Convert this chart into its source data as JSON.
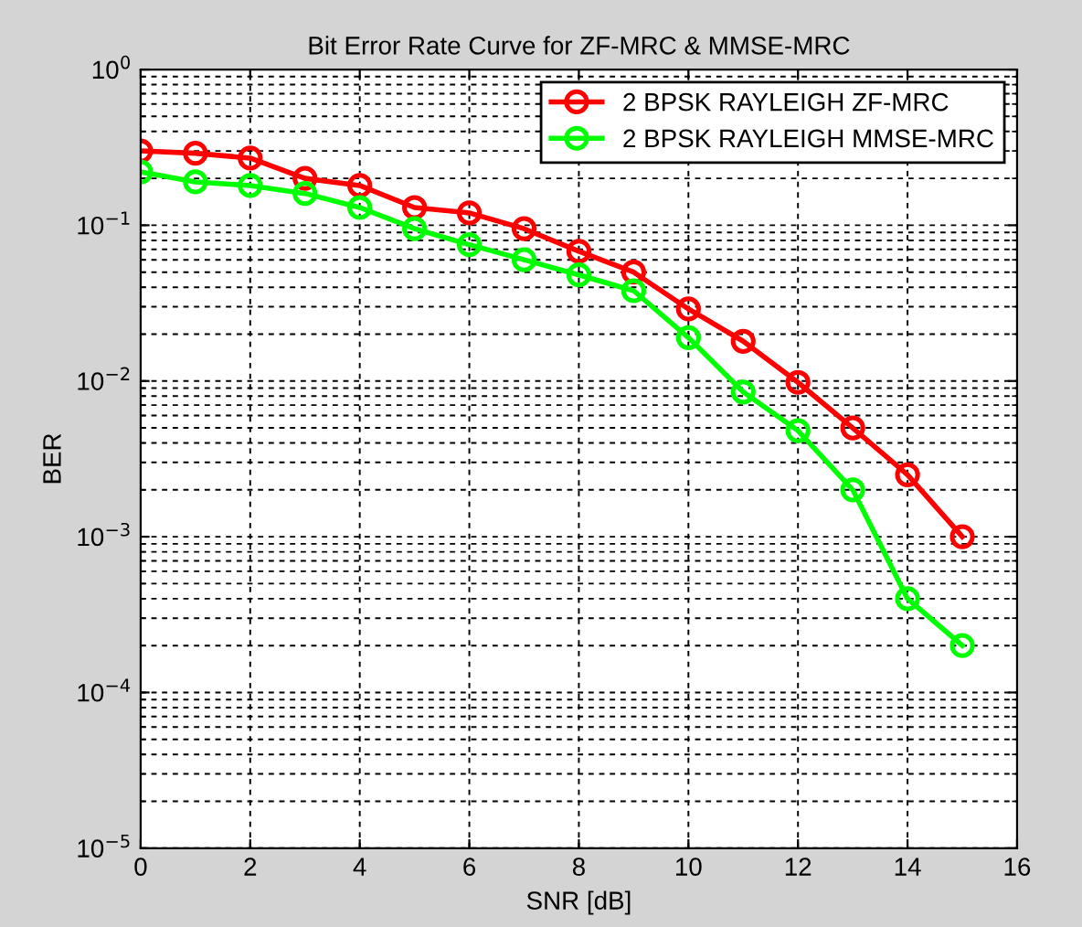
{
  "chart_data": {
    "type": "line",
    "title": "Bit Error Rate Curve for ZF-MRC & MMSE-MRC",
    "xlabel": "SNR [dB]",
    "ylabel": "BER",
    "x": [
      0,
      1,
      2,
      3,
      4,
      5,
      6,
      7,
      8,
      9,
      10,
      11,
      12,
      13,
      14,
      15
    ],
    "series": [
      {
        "name": "2 BPSK RAYLEIGH ZF-MRC",
        "color": "#ff0000",
        "values": [
          0.3,
          0.29,
          0.27,
          0.2,
          0.18,
          0.13,
          0.12,
          0.095,
          0.068,
          0.05,
          0.029,
          0.018,
          0.0098,
          0.005,
          0.0025,
          0.001
        ]
      },
      {
        "name": "2 BPSK RAYLEIGH MMSE-MRC",
        "color": "#00ff00",
        "values": [
          0.22,
          0.19,
          0.18,
          0.16,
          0.13,
          0.095,
          0.075,
          0.06,
          0.048,
          0.038,
          0.019,
          0.0085,
          0.0048,
          0.002,
          0.0004,
          0.0002
        ]
      }
    ],
    "log": "y",
    "xlim": [
      0,
      16
    ],
    "xticks": [
      0,
      2,
      4,
      6,
      8,
      10,
      12,
      14,
      16
    ],
    "ylim": [
      1e-05,
      1
    ],
    "yticks": [
      {
        "value": 1e-05,
        "label": "10$^{−5}$"
      },
      {
        "value": 0.0001,
        "label": "10$^{−4}$"
      },
      {
        "value": 0.001,
        "label": "10$^{−3}$"
      },
      {
        "value": 0.01,
        "label": "10$^{−2}$"
      },
      {
        "value": 0.1,
        "label": "10$^{−1}$"
      },
      {
        "value": 1,
        "label": "10$^{0}$"
      }
    ],
    "grid": true,
    "legend": "top right",
    "marker": "circle",
    "line_style": "solid"
  }
}
